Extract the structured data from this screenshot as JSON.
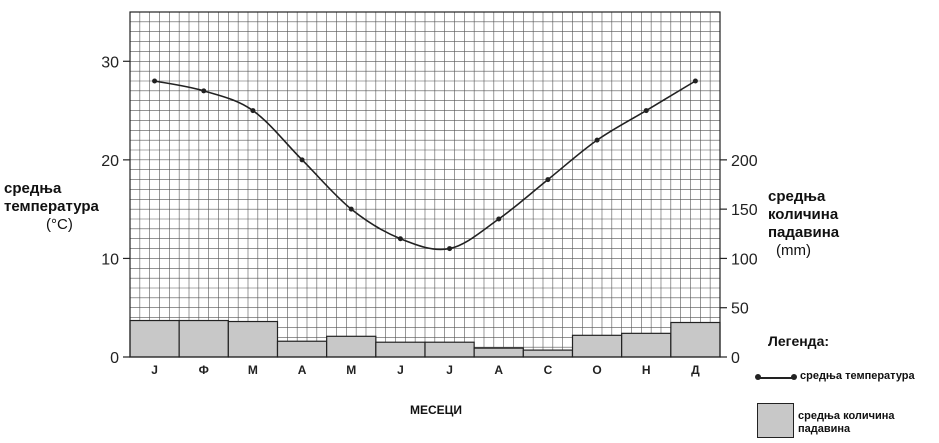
{
  "chart_data": {
    "type": "bar+line",
    "categories": [
      "J",
      "Ф",
      "М",
      "А",
      "М",
      "Ј",
      "Ј",
      "А",
      "С",
      "О",
      "Н",
      "Д"
    ],
    "series": [
      {
        "name": "средња температура",
        "type": "line",
        "axis": "left",
        "values": [
          28,
          27,
          25,
          20,
          15,
          12,
          11,
          14,
          18,
          22,
          25,
          28
        ]
      },
      {
        "name": "средња количина падавина",
        "type": "bar",
        "axis": "right",
        "values": [
          37,
          37,
          36,
          16,
          21,
          15,
          15,
          9,
          7,
          22,
          24,
          35
        ]
      }
    ],
    "left_axis": {
      "label_line1": "средња",
      "label_line2": "температура",
      "unit": "(°C)",
      "range": [
        0,
        35
      ],
      "ticks": [
        0,
        10,
        20,
        30
      ]
    },
    "right_axis": {
      "label_line1": "средња",
      "label_line2": "количина",
      "label_line3": "падавина",
      "unit": "(mm)",
      "range": [
        0,
        350
      ],
      "ticks": [
        0,
        50,
        100,
        150,
        200
      ]
    },
    "xlabel": "МЕСЕЦИ",
    "grid": true,
    "legend": {
      "title": "Легенда:",
      "placement": "bottom-right",
      "line_label": "средња температура",
      "bar_label_line1": "средња количина",
      "bar_label_line2": "падавина"
    },
    "colors": {
      "bar_fill": "#c8c8c8",
      "line": "#222222",
      "grid": "#555555"
    }
  }
}
